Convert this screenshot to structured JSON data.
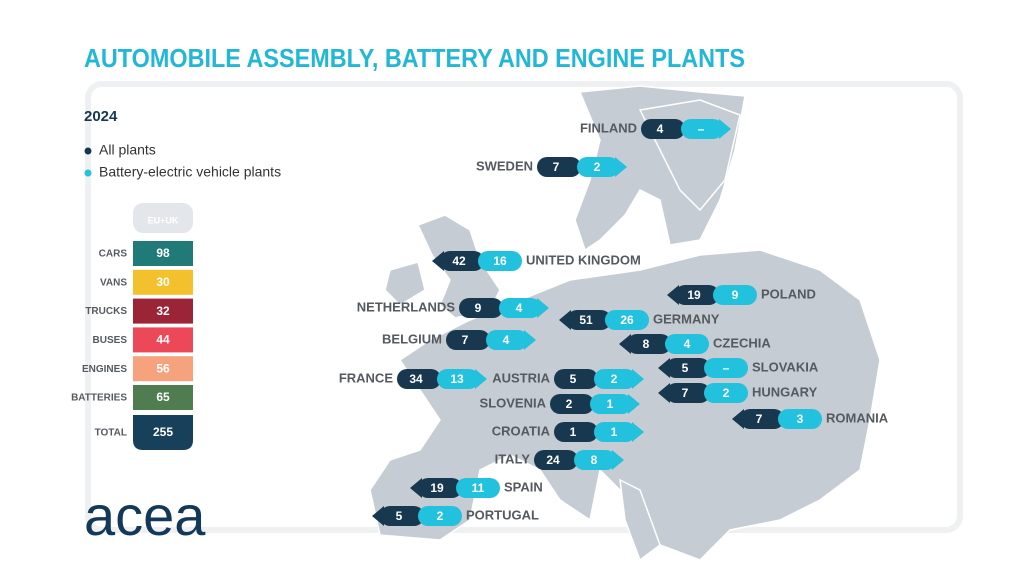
{
  "header": {
    "title": "AUTOMOBILE ASSEMBLY, BATTERY AND ENGINE PLANTS",
    "year": "2024"
  },
  "legend": [
    {
      "label": "All plants",
      "color": "#17384f"
    },
    {
      "label": "Battery-electric vehicle plants",
      "color": "#22c1dd"
    }
  ],
  "table": {
    "header": "EU+UK",
    "rows": [
      {
        "label": "CARS",
        "value": "98",
        "color": "#1f7a78"
      },
      {
        "label": "VANS",
        "value": "30",
        "color": "#f4c12e"
      },
      {
        "label": "TRUCKS",
        "value": "32",
        "color": "#9b2437"
      },
      {
        "label": "BUSES",
        "value": "44",
        "color": "#ec4858"
      },
      {
        "label": "ENGINES",
        "value": "56",
        "color": "#f6a27c"
      },
      {
        "label": "BATTERIES",
        "value": "65",
        "color": "#4f7d50"
      }
    ],
    "total": {
      "label": "TOTAL",
      "value": "255",
      "color": "#17405a"
    }
  },
  "countries": [
    {
      "name": "FINLAND",
      "all": "4",
      "bev": "–"
    },
    {
      "name": "SWEDEN",
      "all": "7",
      "bev": "2"
    },
    {
      "name": "UNITED KINGDOM",
      "all": "42",
      "bev": "16"
    },
    {
      "name": "POLAND",
      "all": "19",
      "bev": "9"
    },
    {
      "name": "NETHERLANDS",
      "all": "9",
      "bev": "4"
    },
    {
      "name": "GERMANY",
      "all": "51",
      "bev": "26"
    },
    {
      "name": "BELGIUM",
      "all": "7",
      "bev": "4"
    },
    {
      "name": "CZECHIA",
      "all": "8",
      "bev": "4"
    },
    {
      "name": "SLOVAKIA",
      "all": "5",
      "bev": "–"
    },
    {
      "name": "FRANCE",
      "all": "34",
      "bev": "13"
    },
    {
      "name": "AUSTRIA",
      "all": "5",
      "bev": "2"
    },
    {
      "name": "HUNGARY",
      "all": "7",
      "bev": "2"
    },
    {
      "name": "SLOVENIA",
      "all": "2",
      "bev": "1"
    },
    {
      "name": "ROMANIA",
      "all": "7",
      "bev": "3"
    },
    {
      "name": "CROATIA",
      "all": "1",
      "bev": "1"
    },
    {
      "name": "ITALY",
      "all": "24",
      "bev": "8"
    },
    {
      "name": "SPAIN",
      "all": "19",
      "bev": "11"
    },
    {
      "name": "PORTUGAL",
      "all": "5",
      "bev": "2"
    }
  ],
  "logo": "acea"
}
